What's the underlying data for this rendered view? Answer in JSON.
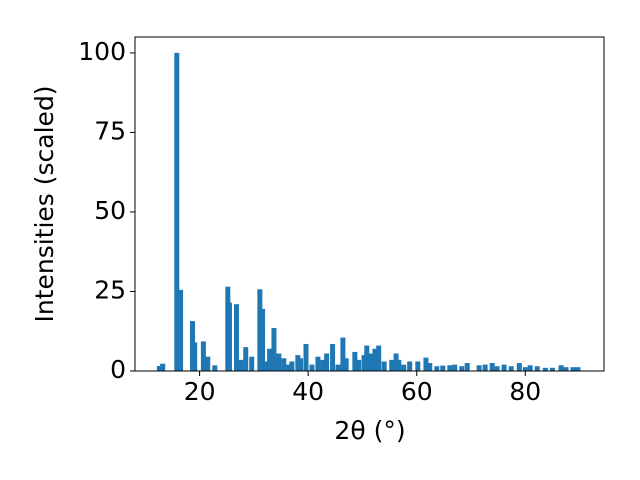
{
  "chart_data": {
    "type": "bar",
    "x_label": "2θ (°)",
    "y_label": "Intensities (scaled)",
    "color": "#1f77b4",
    "x": [
      12.6,
      13.2,
      15.8,
      16.5,
      18.7,
      19.1,
      20.7,
      21.5,
      22.8,
      25.2,
      25.5,
      26.8,
      27.6,
      28.5,
      29.6,
      31.1,
      31.6,
      32.2,
      32.9,
      33.7,
      34.6,
      35.5,
      36.2,
      37.0,
      38.1,
      38.6,
      39.6,
      40.7,
      41.8,
      42.7,
      43.4,
      44.5,
      45.5,
      46.4,
      47.0,
      48.6,
      49.3,
      50.3,
      50.8,
      51.6,
      52.3,
      53.0,
      54.0,
      55.4,
      56.2,
      56.7,
      57.6,
      58.7,
      60.2,
      61.7,
      62.4,
      63.7,
      64.8,
      66.1,
      67.0,
      68.3,
      69.3,
      71.5,
      72.6,
      73.9,
      74.8,
      76.1,
      77.4,
      78.9,
      80.0,
      80.9,
      82.2,
      83.7,
      85.0,
      86.6,
      87.5,
      88.8,
      89.7
    ],
    "values": [
      1.6,
      2.3,
      100,
      25.5,
      15.7,
      9,
      9.3,
      4.5,
      1.8,
      26.5,
      21.5,
      21,
      3.5,
      7.5,
      4.5,
      25.7,
      19.5,
      3,
      7,
      13.5,
      5.5,
      4,
      2,
      3,
      5,
      4,
      8.5,
      2,
      4.5,
      3.5,
      5.5,
      8.5,
      2,
      10.5,
      4,
      6,
      3.5,
      5,
      8,
      5.5,
      7,
      8,
      3,
      3.5,
      5.5,
      3.5,
      2,
      3,
      3,
      4.2,
      2.5,
      1.5,
      1.7,
      1.8,
      2,
      1.5,
      2.5,
      1.8,
      2,
      2.5,
      1.5,
      2,
      1.5,
      2.5,
      1.2,
      1.8,
      1.5,
      1,
      1,
      1.8,
      1.2,
      1.2,
      1.2
    ],
    "xlim": [
      8.1,
      94.5
    ],
    "ylim": [
      0,
      105
    ],
    "xticks": [
      20,
      40,
      60,
      80
    ],
    "yticks": [
      0,
      25,
      50,
      75,
      100
    ]
  }
}
